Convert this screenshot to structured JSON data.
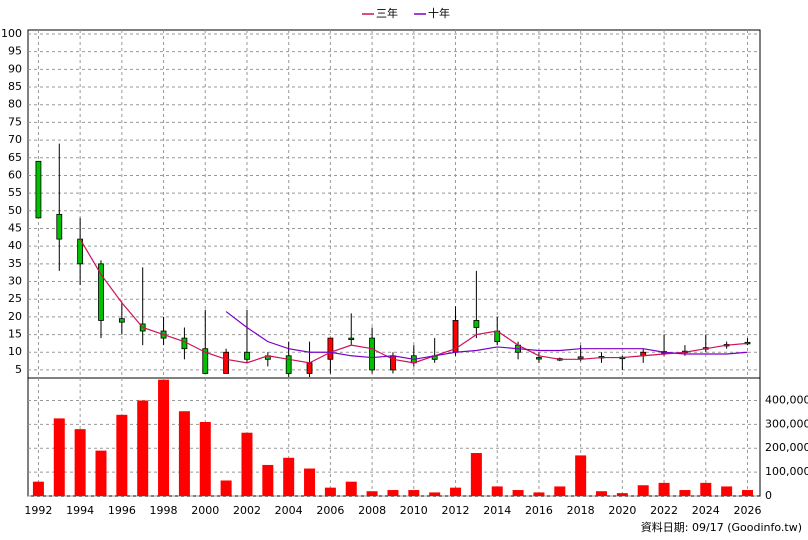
{
  "chart_data": {
    "type": "candlestick",
    "x": [
      1992,
      1993,
      1994,
      1995,
      1996,
      1997,
      1998,
      1999,
      2000,
      2001,
      2002,
      2003,
      2004,
      2005,
      2006,
      2007,
      2008,
      2009,
      2010,
      2011,
      2012,
      2013,
      2014,
      2015,
      2016,
      2017,
      2018,
      2019,
      2020,
      2021,
      2022,
      2023,
      2024,
      2025,
      2026
    ],
    "open": [
      64,
      49,
      42,
      35,
      19.5,
      18,
      16,
      14,
      11,
      4,
      10,
      9,
      9,
      4,
      8,
      14,
      14,
      5,
      9,
      9,
      10,
      19,
      16,
      12,
      8.5,
      8.2,
      8.7,
      8.8,
      8.6,
      9,
      10.2,
      10.3,
      11.3,
      12,
      12.8
    ],
    "high": [
      64,
      69,
      48,
      36,
      24,
      34,
      20,
      17,
      22,
      11,
      22,
      10,
      13,
      13,
      14,
      21,
      17,
      10,
      12,
      14,
      23,
      33,
      20,
      13,
      10,
      8.5,
      12,
      10,
      9,
      11,
      15,
      12,
      15,
      13,
      14
    ],
    "low": [
      48,
      33,
      29,
      14,
      15,
      12,
      12,
      8,
      4,
      4,
      7,
      6,
      3,
      3,
      4,
      12,
      4,
      4,
      6,
      7,
      9,
      14,
      12,
      8,
      7,
      7.5,
      7.5,
      7,
      5,
      7,
      9,
      9,
      10,
      11,
      12
    ],
    "close": [
      48,
      42,
      35,
      19,
      18.5,
      16,
      14,
      11,
      4,
      10,
      8,
      8,
      4,
      7,
      14,
      13.8,
      5,
      9,
      7,
      8,
      19,
      17,
      13,
      10,
      8.2,
      8,
      8.4,
      8.5,
      8.4,
      10,
      9.8,
      10,
      11,
      12.2,
      12.5
    ],
    "up_color": "#ff0000",
    "down_color": "#00c000",
    "series": [
      {
        "name": "三年",
        "color": "#d0105a",
        "values": [
          null,
          null,
          42,
          32,
          24,
          17,
          15,
          13,
          10,
          8,
          7,
          9,
          8,
          7,
          10,
          12,
          11,
          8,
          7,
          9,
          11,
          15,
          16,
          12,
          9,
          8,
          8,
          8.5,
          8.5,
          9,
          9.5,
          10,
          11,
          12,
          12.5
        ]
      },
      {
        "name": "十年",
        "color": "#7a00c8",
        "values": [
          null,
          null,
          null,
          null,
          null,
          null,
          null,
          null,
          null,
          21.5,
          17,
          13,
          11,
          10,
          10,
          9,
          8.5,
          9,
          8,
          9,
          10,
          10.5,
          11.5,
          11,
          10.5,
          10.5,
          11,
          11,
          11,
          11,
          10,
          9.5,
          9.5,
          9.5,
          10
        ]
      }
    ],
    "volume": {
      "color": "#ff0000",
      "values": [
        60000,
        325000,
        280000,
        190000,
        340000,
        400000,
        487000,
        355000,
        310000,
        65000,
        265000,
        130000,
        160000,
        115000,
        35000,
        60000,
        20000,
        25000,
        25000,
        15000,
        35000,
        180000,
        40000,
        25000,
        15000,
        40000,
        170000,
        20000,
        12000,
        45000,
        55000,
        25000,
        55000,
        40000,
        25000
      ]
    },
    "xlim": [
      1991.5,
      2026.6
    ],
    "xticks": [
      1992,
      1994,
      1996,
      1998,
      2000,
      2002,
      2004,
      2006,
      2008,
      2010,
      2012,
      2014,
      2016,
      2018,
      2020,
      2022,
      2024,
      2026
    ],
    "ylim": [
      3,
      100
    ],
    "yticks": [
      5,
      10,
      15,
      20,
      25,
      30,
      35,
      40,
      45,
      50,
      55,
      60,
      65,
      70,
      75,
      80,
      85,
      90,
      95,
      100
    ],
    "y2lim": [
      0,
      490000
    ],
    "y2ticks": [
      0,
      {
        "value": 100000,
        "label": "100,000"
      },
      {
        "value": 200000,
        "label": "200,000"
      },
      {
        "value": 300000,
        "label": "300,000"
      },
      {
        "value": 400000,
        "label": "400,000"
      }
    ],
    "grid": true,
    "footer": "資料日期: 09/17 (Goodinfo.tw)"
  }
}
